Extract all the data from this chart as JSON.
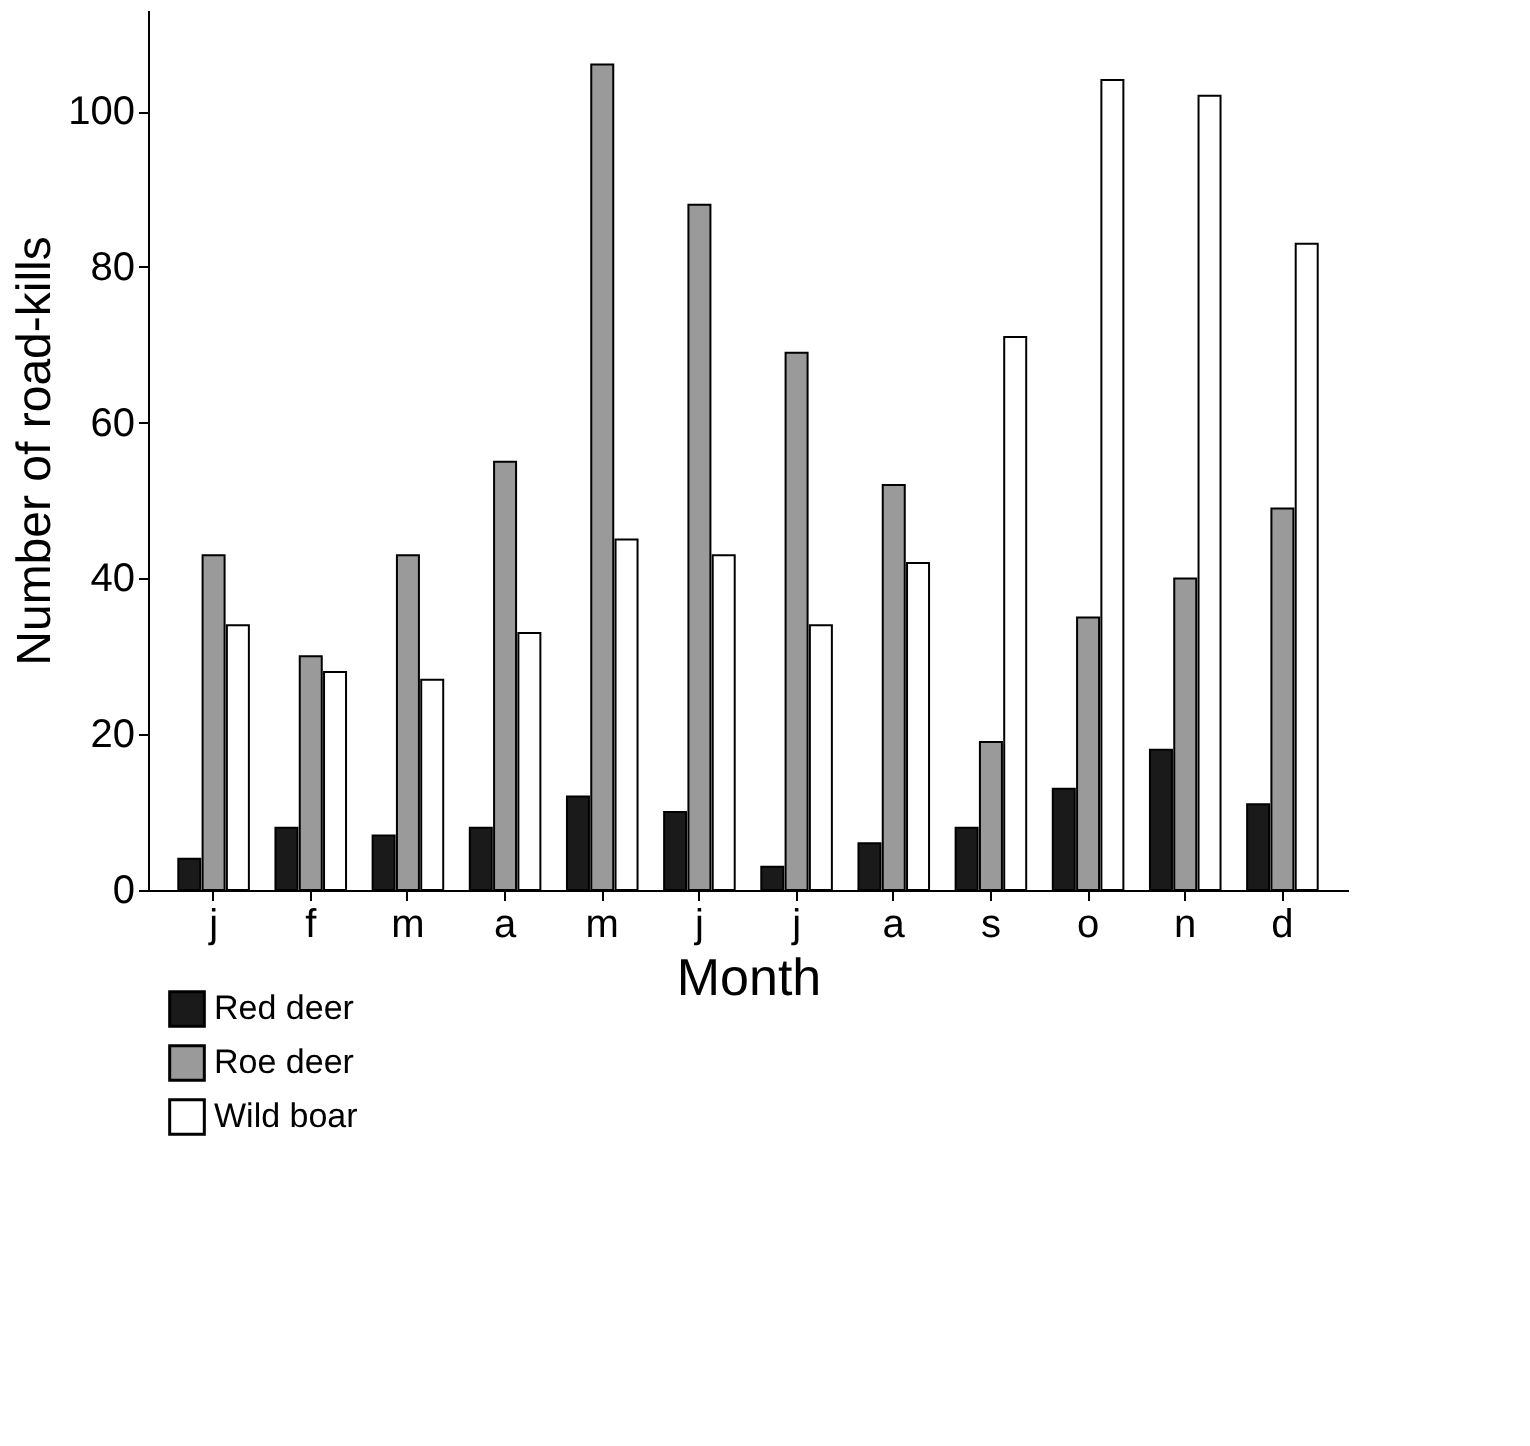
{
  "chart_data": {
    "type": "bar",
    "xlabel": "Month",
    "ylabel": "Number of road-kills",
    "categories": [
      "j",
      "f",
      "m",
      "a",
      "m",
      "j",
      "j",
      "a",
      "s",
      "o",
      "n",
      "d"
    ],
    "series": [
      {
        "name": "Red deer",
        "color": "#1a1a1a",
        "values": [
          4,
          8,
          7,
          8,
          12,
          10,
          3,
          6,
          8,
          13,
          18,
          11
        ]
      },
      {
        "name": "Roe deer",
        "color": "#9a9a9a",
        "values": [
          43,
          30,
          43,
          55,
          106,
          88,
          69,
          52,
          19,
          35,
          40,
          49
        ]
      },
      {
        "name": "Wild boar",
        "color": "#ffffff",
        "values": [
          34,
          28,
          27,
          33,
          45,
          43,
          34,
          42,
          71,
          104,
          102,
          83
        ]
      }
    ],
    "ylim": [
      0,
      113
    ],
    "yticks": [
      0,
      20,
      40,
      60,
      80,
      100
    ],
    "grid": false,
    "legend": "bottom left"
  }
}
